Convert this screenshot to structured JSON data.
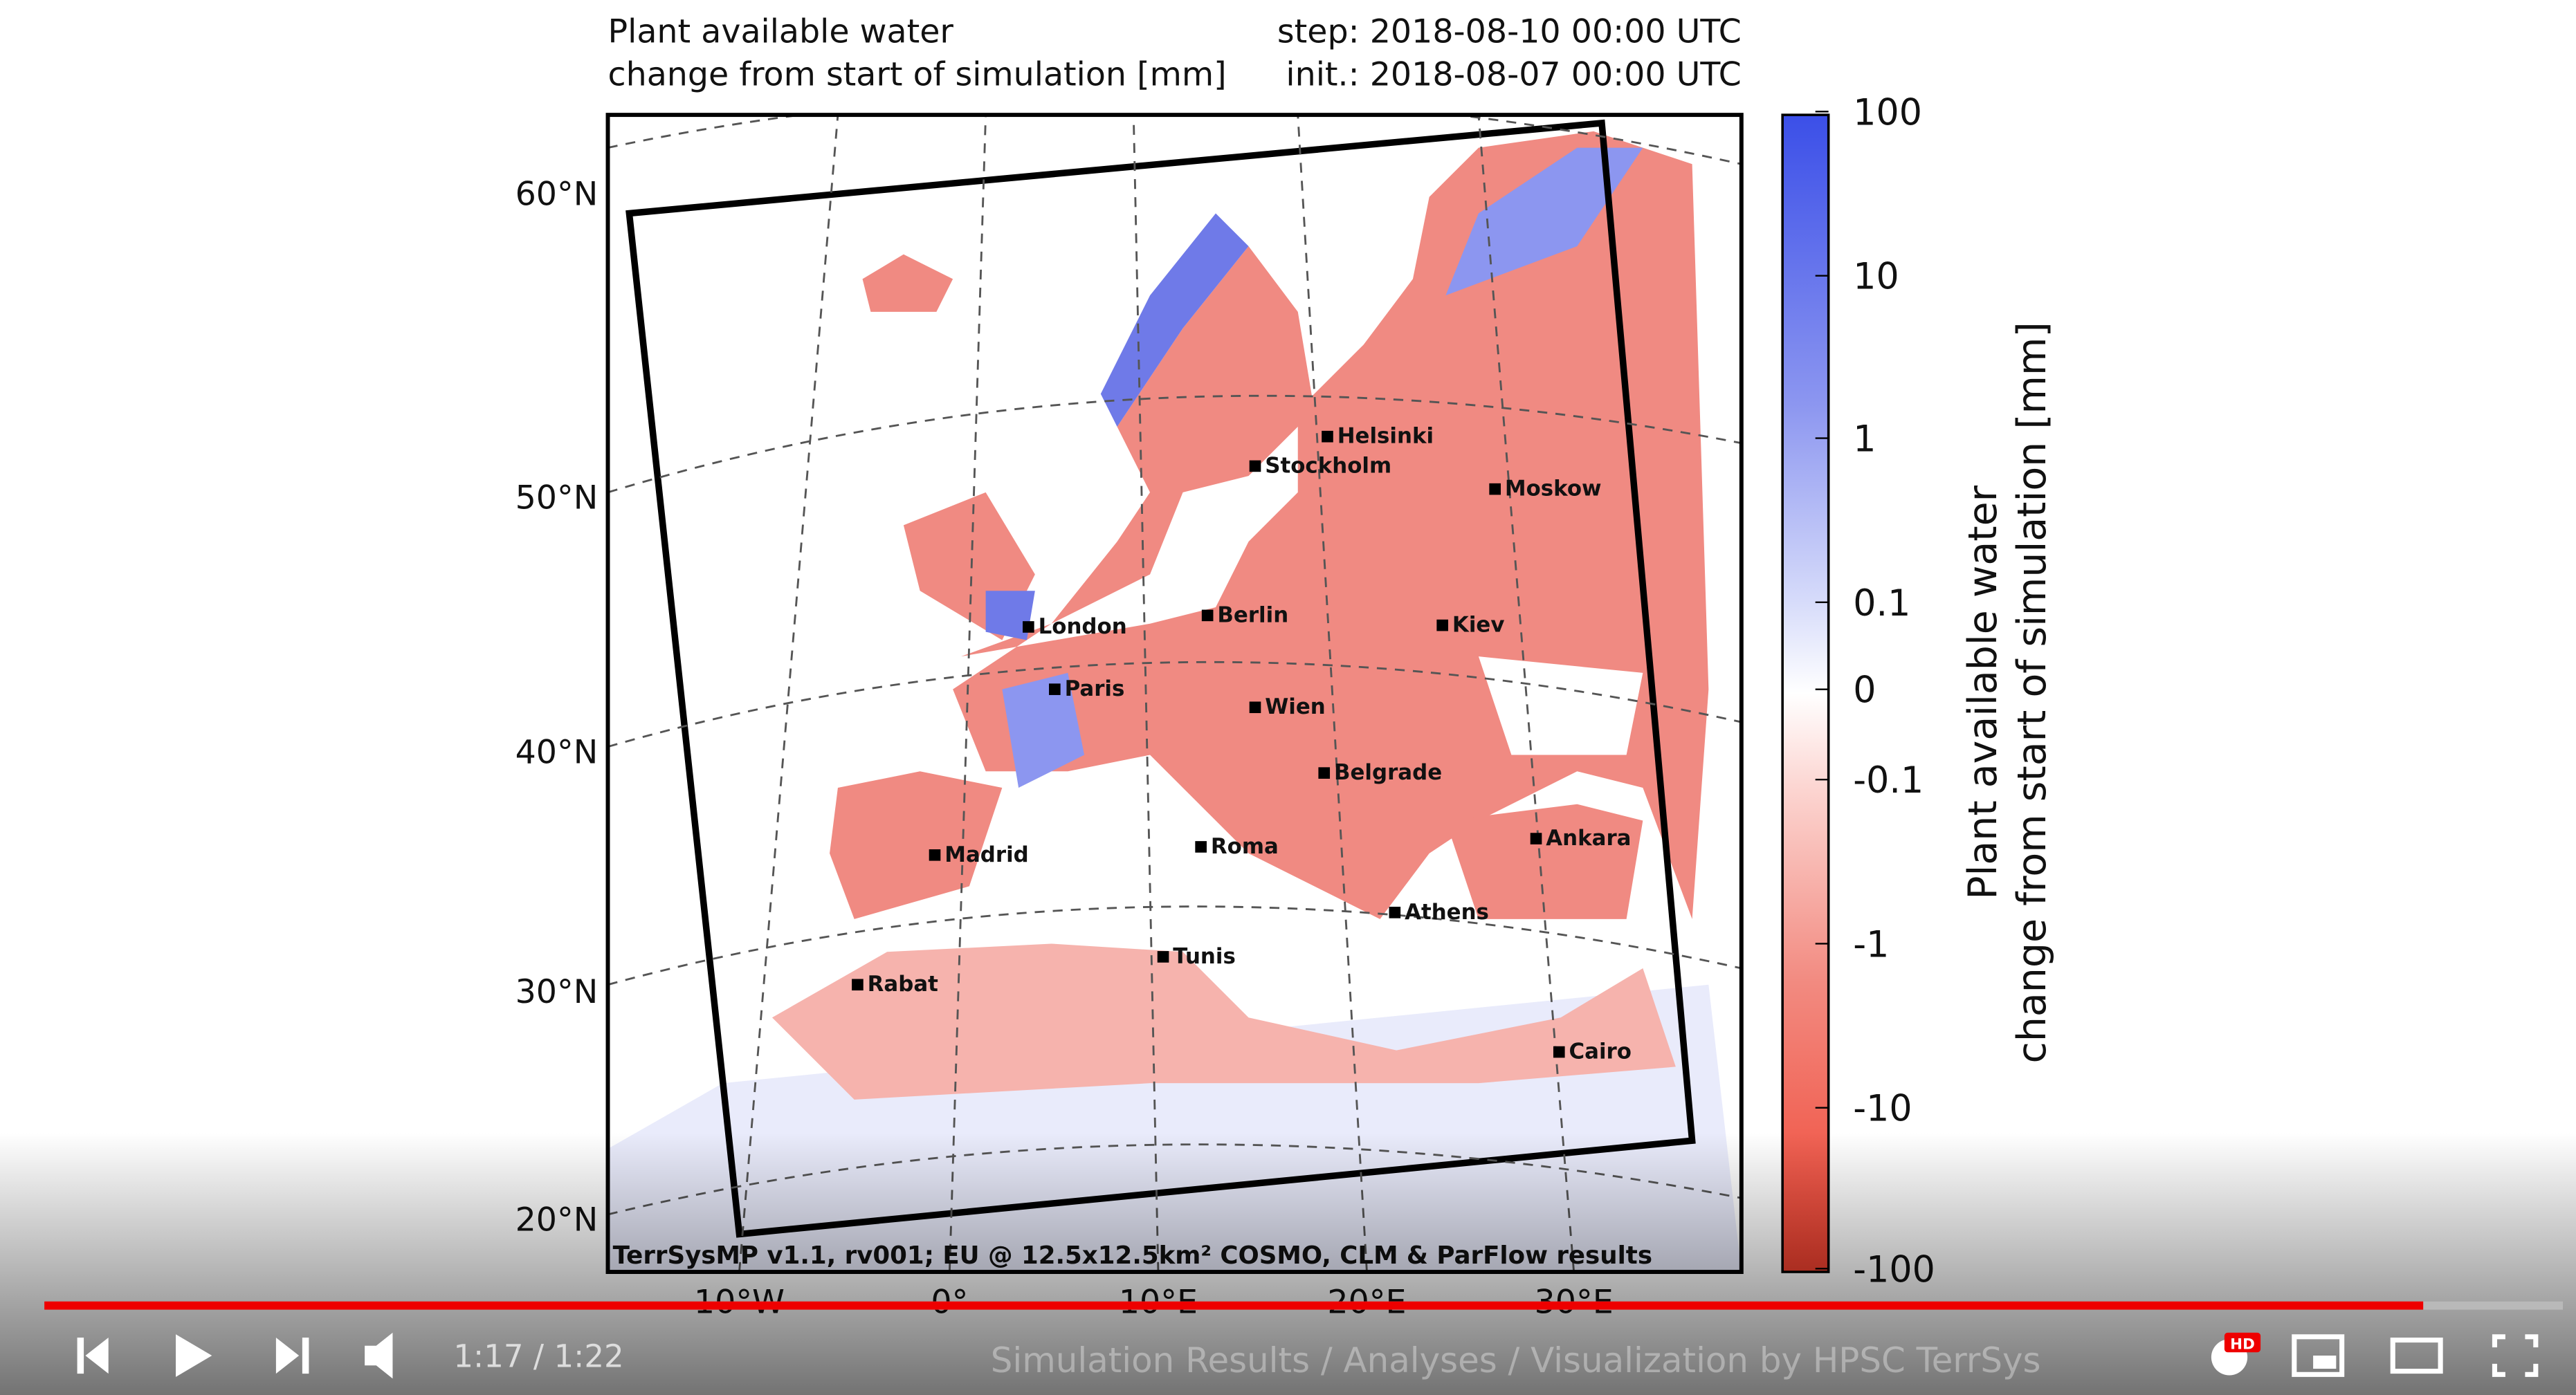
{
  "plot": {
    "title_left": [
      "Plant available water",
      "change from start of simulation [mm]"
    ],
    "title_right": [
      "step: 2018-08-10 00:00 UTC",
      "init.: 2018-08-07 00:00 UTC"
    ],
    "lat_labels": [
      "60°N",
      "50°N",
      "40°N",
      "30°N",
      "20°N"
    ],
    "lon_labels": [
      "10°W",
      "0°",
      "10°E",
      "20°E",
      "30°E"
    ],
    "cities": [
      "Helsinki",
      "Stockholm",
      "Moskow",
      "London",
      "Berlin",
      "Kiev",
      "Paris",
      "Wien",
      "Belgrade",
      "Madrid",
      "Roma",
      "Ankara",
      "Athens",
      "Tunis",
      "Rabat",
      "Cairo"
    ],
    "credit": "TerrSysMP v1.1, rv001; EU @ 12.5x12.5km² COSMO, CLM & ParFlow results"
  },
  "colorbar": {
    "label": [
      "Plant available water",
      "change from start of simulation [mm]"
    ],
    "ticks": [
      "100",
      "10",
      "1",
      "0.1",
      "0",
      "-0.1",
      "-1",
      "-10",
      "-100"
    ]
  },
  "player": {
    "time": "1:17 / 1:22",
    "overlay": "Simulation Results / Analyses / Visualization by HPSC TerrSys",
    "badge": "HD"
  }
}
